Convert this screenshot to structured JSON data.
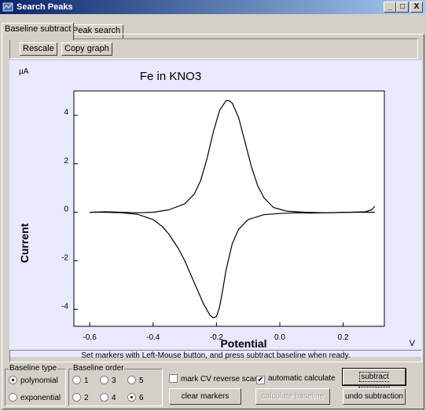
{
  "window": {
    "title": "Search Peaks",
    "minimize": "_",
    "maximize": "□",
    "close": "X"
  },
  "tabs": [
    {
      "label": "Baseline subtract"
    },
    {
      "label": "Peak search"
    }
  ],
  "toolbar": {
    "rescale_label": "Rescale",
    "copy_graph_label": "Copy graph"
  },
  "chart_data": {
    "type": "line",
    "title": "Fe in KNO3",
    "xlabel": "Potential",
    "ylabel": "Current",
    "x_unit": "V",
    "y_unit": "µA",
    "xlim": [
      -0.65,
      0.33
    ],
    "ylim": [
      -4.7,
      5.0
    ],
    "x_ticks": [
      -0.6,
      -0.4,
      -0.2,
      0.0,
      0.2
    ],
    "x_tick_labels": [
      "-0.6",
      "-0.4",
      "-0.2",
      "0.0",
      "0.2"
    ],
    "y_ticks": [
      -4,
      -2,
      0,
      2,
      4
    ],
    "y_tick_labels": [
      "-4",
      "-2",
      "0",
      "2",
      "4"
    ],
    "grid": false,
    "series": [
      {
        "x": [
          -0.6,
          -0.55,
          -0.5,
          -0.45,
          -0.4,
          -0.35,
          -0.3,
          -0.27,
          -0.25,
          -0.23,
          -0.21,
          -0.19,
          -0.17,
          -0.16,
          -0.15,
          -0.13,
          -0.11,
          -0.09,
          -0.07,
          -0.05,
          -0.02,
          0.02,
          0.08,
          0.15,
          0.22,
          0.27,
          0.29,
          0.3
        ],
        "y": [
          0.0,
          0.02,
          0.0,
          -0.02,
          0.0,
          0.1,
          0.35,
          0.75,
          1.3,
          2.2,
          3.3,
          4.2,
          4.6,
          4.6,
          4.5,
          3.9,
          2.9,
          1.9,
          1.1,
          0.6,
          0.2,
          0.05,
          0.0,
          -0.02,
          0.0,
          0.02,
          0.1,
          0.25
        ],
        "color": "#000000"
      },
      {
        "x": [
          -0.6,
          -0.55,
          -0.5,
          -0.45,
          -0.4,
          -0.37,
          -0.35,
          -0.32,
          -0.3,
          -0.28,
          -0.26,
          -0.24,
          -0.22,
          -0.21,
          -0.2,
          -0.19,
          -0.18,
          -0.17,
          -0.15,
          -0.13,
          -0.1,
          -0.05,
          0.0,
          0.05,
          0.1,
          0.15,
          0.2,
          0.25,
          0.3
        ],
        "y": [
          0.0,
          0.0,
          -0.02,
          -0.08,
          -0.3,
          -0.6,
          -0.9,
          -1.5,
          -2.0,
          -2.6,
          -3.2,
          -3.8,
          -4.25,
          -4.35,
          -4.3,
          -3.9,
          -3.2,
          -2.4,
          -1.3,
          -0.7,
          -0.3,
          -0.1,
          -0.05,
          -0.02,
          -0.03,
          -0.02,
          0.0,
          0.0,
          0.0
        ],
        "color": "#000000"
      }
    ]
  },
  "status_text": "Set markers with Left-Mouse button, and press subtract baseline when ready.",
  "baseline_type": {
    "legend": "Baseline type",
    "options": [
      {
        "label": "polynomial",
        "selected": true
      },
      {
        "label": "exponential",
        "selected": false
      }
    ]
  },
  "baseline_order": {
    "legend": "Baseline order",
    "options": [
      {
        "label": "1",
        "selected": false
      },
      {
        "label": "3",
        "selected": false
      },
      {
        "label": "5",
        "selected": false
      },
      {
        "label": "2",
        "selected": false
      },
      {
        "label": "4",
        "selected": false
      },
      {
        "label": "6",
        "selected": true
      }
    ]
  },
  "options": {
    "mark_cv_label": "mark CV reverse scan",
    "mark_cv_checked": false,
    "auto_calc_label": "automatic calculate",
    "auto_calc_checked": true
  },
  "buttons": {
    "clear_markers": "clear markers",
    "calculate_baseline": "calculate baseline",
    "subtract_baseline": "subtract baseline",
    "undo_subtraction": "undo subtraction"
  },
  "colors": {
    "title_gradient_start": "#0a246a",
    "title_gradient_end": "#a6caf0",
    "chart_background": "#e8e8ff",
    "plot_background": "#ffffff",
    "face": "#d4d0c8"
  }
}
